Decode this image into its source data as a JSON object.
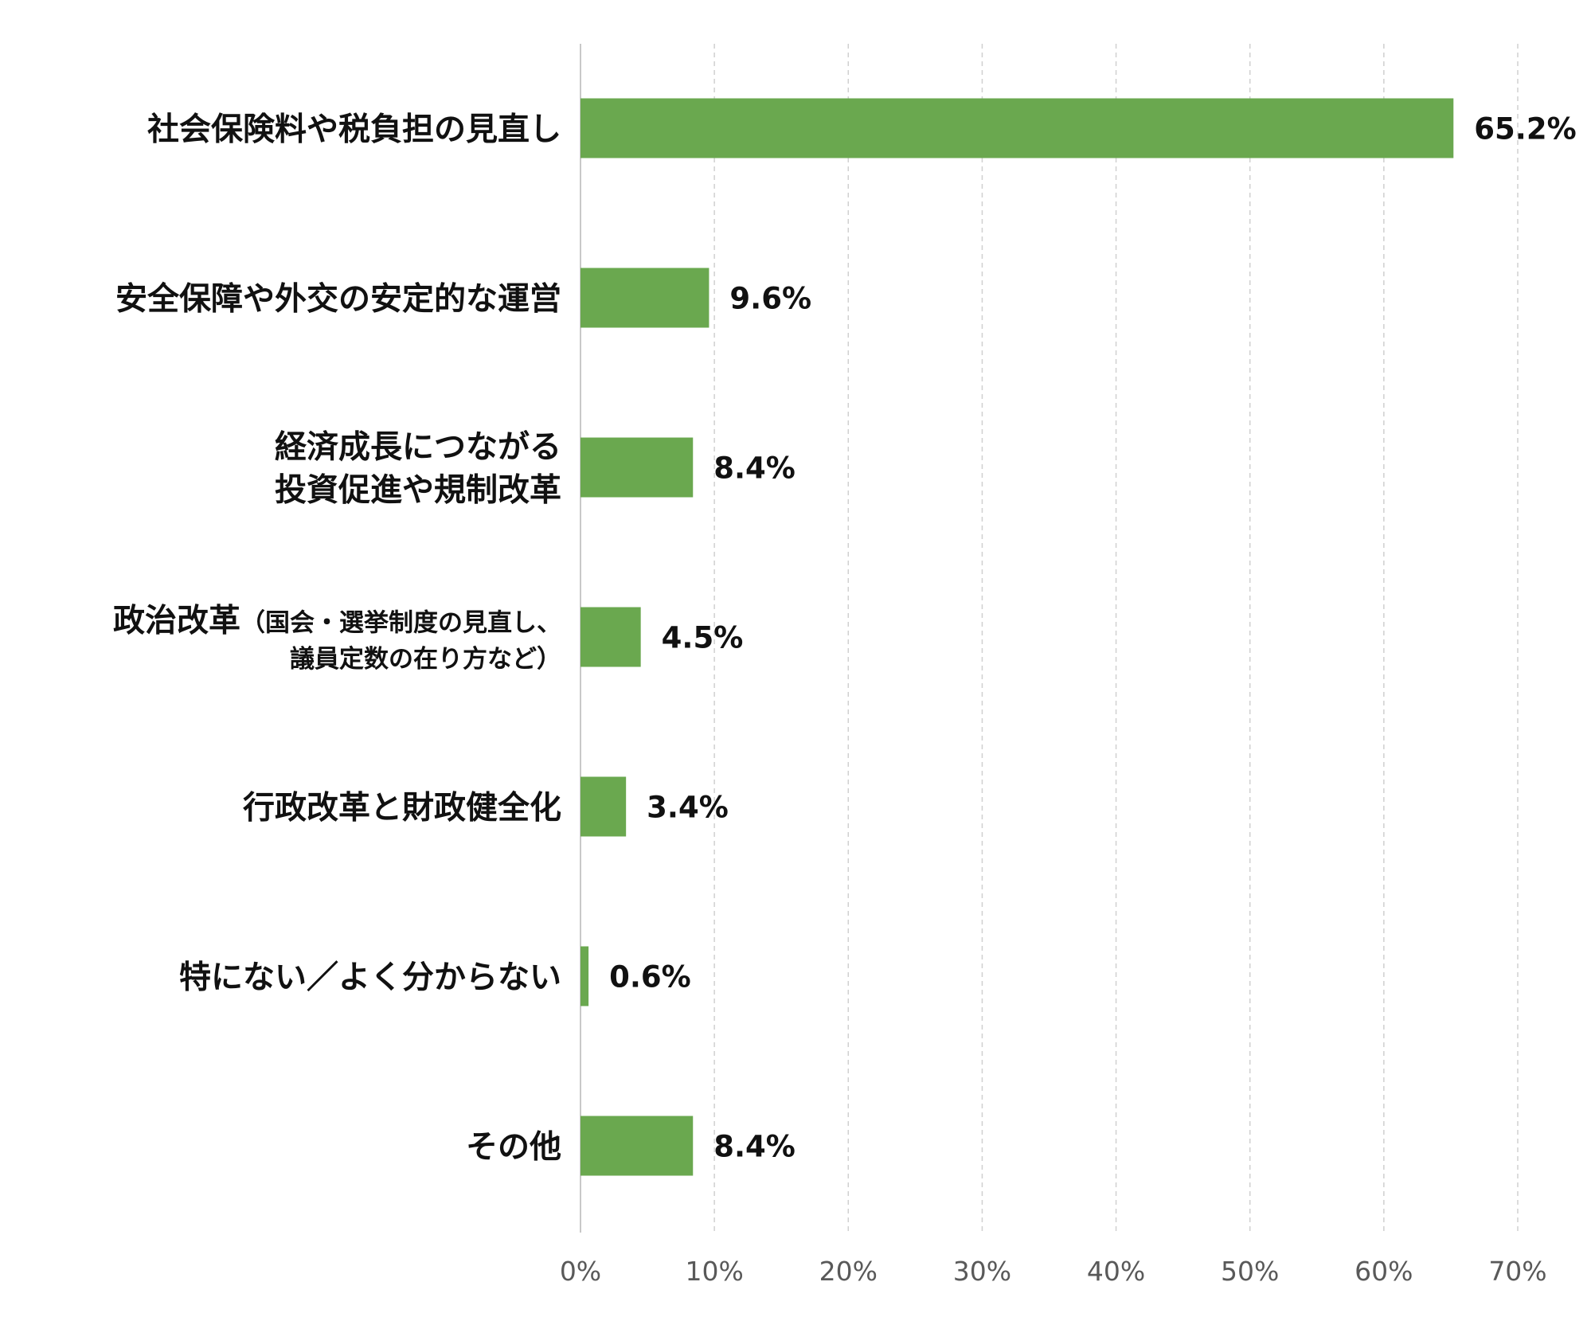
{
  "chart_data": {
    "type": "bar",
    "orientation": "horizontal",
    "categories": [
      {
        "lines": [
          {
            "main": "社会保険料や税負担の見直し"
          }
        ]
      },
      {
        "lines": [
          {
            "main": "安全保障や外交の安定的な運営"
          }
        ]
      },
      {
        "lines": [
          {
            "main": "経済成長につながる"
          },
          {
            "main": "投資促進や規制改革"
          }
        ]
      },
      {
        "lines": [
          {
            "main": "政治改革",
            "sub": "（国会・選挙制度の見直し、"
          },
          {
            "sub": "議員定数の在り方など）"
          }
        ]
      },
      {
        "lines": [
          {
            "main": "行政改革と財政健全化"
          }
        ]
      },
      {
        "lines": [
          {
            "main": "特にない／よく分からない"
          }
        ]
      },
      {
        "lines": [
          {
            "main": "その他"
          }
        ]
      }
    ],
    "values": [
      65.2,
      9.6,
      8.4,
      4.5,
      3.4,
      0.6,
      8.4
    ],
    "value_labels": [
      "65.2%",
      "9.6%",
      "8.4%",
      "4.5%",
      "3.4%",
      "0.6%",
      "8.4%"
    ],
    "xlim": [
      0,
      70
    ],
    "ticks": [
      0,
      10,
      20,
      30,
      40,
      50,
      60,
      70
    ],
    "tick_labels": [
      "0%",
      "10%",
      "20%",
      "30%",
      "40%",
      "50%",
      "60%",
      "70%"
    ],
    "grid": true,
    "grid_style": "dashed",
    "legend": "none",
    "bar_color": "#6aa84f",
    "grid_color": "#d0d0d0",
    "axis_color": "#c8c8c8"
  }
}
